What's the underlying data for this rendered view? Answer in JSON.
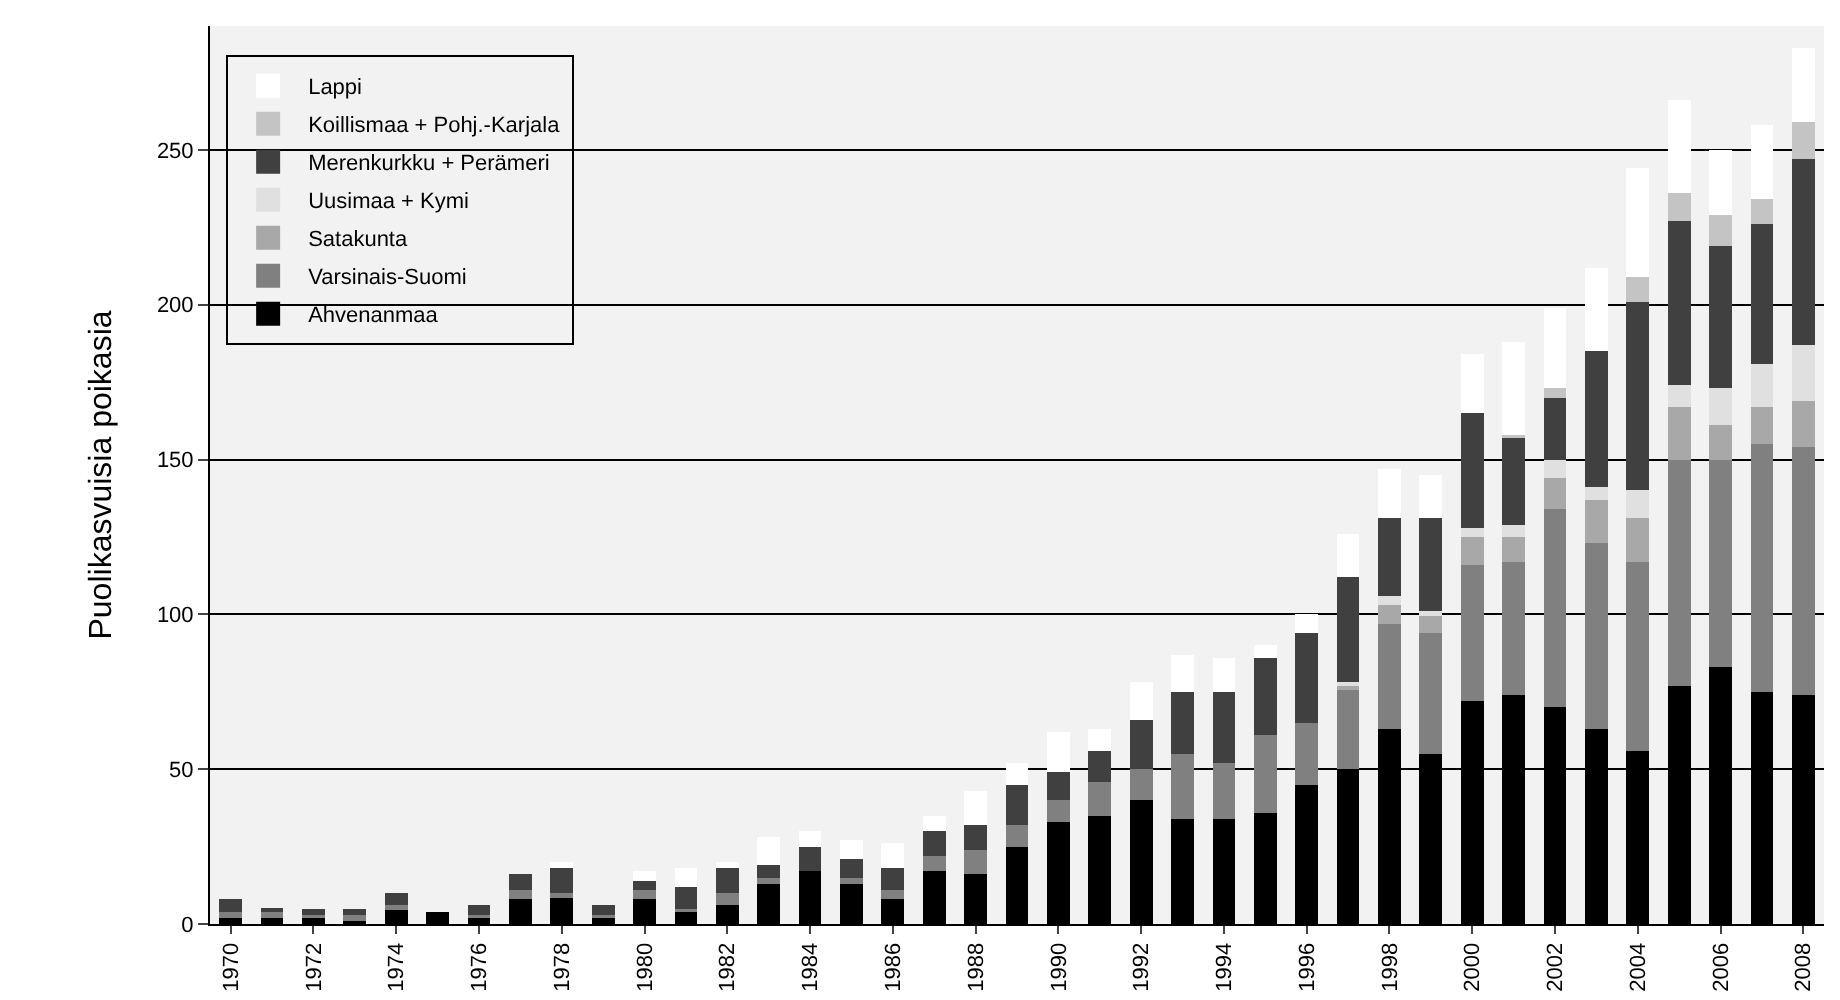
{
  "chart_data": {
    "type": "bar",
    "stacked": true,
    "ylabel": "Puolikasvuisia poikasia",
    "categories": [
      "1970",
      null,
      "1972",
      null,
      "1974",
      null,
      "1976",
      null,
      "1978",
      null,
      "1980",
      null,
      "1982",
      null,
      "1984",
      null,
      "1986",
      null,
      "1988",
      null,
      "1990",
      null,
      "1992",
      null,
      "1994",
      null,
      "1996",
      null,
      "1998",
      null,
      "2000",
      null,
      "2002",
      null,
      "2004",
      null,
      "2006",
      null,
      "2008"
    ],
    "series": [
      {
        "name": "Ahvenanmaa",
        "color": "#000000",
        "values": [
          2,
          2,
          2,
          1,
          5,
          4,
          2,
          8,
          9,
          2,
          8,
          4,
          6,
          13,
          17,
          13,
          8,
          17,
          16,
          25,
          33,
          35,
          40,
          34,
          34,
          36,
          45,
          50,
          63,
          55,
          72,
          74,
          70,
          63,
          56,
          77,
          83,
          75,
          74
        ]
      },
      {
        "name": "Varsinais-Suomi",
        "color": "#808080",
        "values": [
          2,
          2,
          1,
          2,
          1,
          0,
          1,
          3,
          1,
          1,
          3,
          1,
          4,
          2,
          0,
          2,
          3,
          5,
          8,
          7,
          7,
          11,
          10,
          21,
          18,
          25,
          20,
          26,
          34,
          39,
          44,
          43,
          64,
          60,
          61,
          73,
          67,
          80,
          80
        ]
      },
      {
        "name": "Satakunta",
        "color": "#a8a8a8",
        "values": [
          0,
          0,
          0,
          0,
          0,
          0,
          0,
          0,
          0,
          0,
          0,
          0,
          0,
          0,
          0,
          0,
          0,
          0,
          0,
          0,
          0,
          0,
          0,
          0,
          0,
          0,
          0,
          1,
          6,
          6,
          9,
          8,
          10,
          14,
          14,
          17,
          11,
          12,
          15
        ]
      },
      {
        "name": "Uusimaa + Kymi",
        "color": "#e0e0e0",
        "values": [
          0,
          0,
          0,
          0,
          0,
          0,
          0,
          0,
          0,
          0,
          0,
          0,
          0,
          0,
          0,
          0,
          0,
          0,
          0,
          0,
          0,
          0,
          0,
          0,
          0,
          0,
          0,
          1,
          3,
          1,
          3,
          4,
          6,
          4,
          9,
          7,
          12,
          14,
          18
        ]
      },
      {
        "name": "Merenkurkku + Perämeri",
        "color": "#404040",
        "values": [
          4,
          1,
          2,
          2,
          4,
          0,
          3,
          5,
          8,
          3,
          3,
          7,
          8,
          4,
          8,
          6,
          7,
          8,
          8,
          13,
          9,
          10,
          16,
          20,
          23,
          25,
          29,
          34,
          25,
          30,
          37,
          28,
          20,
          44,
          61,
          53,
          46,
          45,
          60
        ]
      },
      {
        "name": "Koillismaa + Pohj.-Karjala",
        "color": "#c4c4c4",
        "values": [
          0,
          0,
          0,
          0,
          0,
          0,
          0,
          0,
          0,
          0,
          0,
          0,
          0,
          0,
          0,
          0,
          0,
          0,
          0,
          0,
          0,
          0,
          0,
          0,
          0,
          0,
          0,
          0,
          0,
          0,
          0,
          1,
          3,
          0,
          8,
          9,
          10,
          8,
          12
        ]
      },
      {
        "name": "Lappi",
        "color": "#ffffff",
        "values": [
          0,
          0,
          0,
          0,
          0,
          0,
          0,
          0,
          2,
          0,
          3,
          6,
          2,
          9,
          5,
          6,
          8,
          5,
          11,
          7,
          13,
          7,
          12,
          12,
          11,
          4,
          6,
          14,
          16,
          14,
          19,
          30,
          26,
          27,
          35,
          30,
          21,
          24,
          24
        ]
      }
    ],
    "ylim": [
      0,
      290
    ],
    "yticks": [
      0,
      50,
      100,
      150,
      200,
      250
    ],
    "grid": "y",
    "legend": "top left"
  }
}
